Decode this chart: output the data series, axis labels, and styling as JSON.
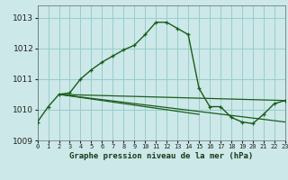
{
  "title": "Graphe pression niveau de la mer (hPa)",
  "bg_color": "#cce8e8",
  "grid_color": "#99cccc",
  "line_color": "#1a5c1a",
  "x_labels": [
    "0",
    "1",
    "2",
    "3",
    "4",
    "5",
    "6",
    "7",
    "8",
    "9",
    "10",
    "11",
    "12",
    "13",
    "14",
    "15",
    "16",
    "17",
    "18",
    "19",
    "20",
    "21",
    "22",
    "23"
  ],
  "xlim": [
    0,
    23
  ],
  "ylim": [
    1009,
    1013.4
  ],
  "yticks": [
    1009,
    1010,
    1011,
    1012,
    1013
  ],
  "main_series": [
    [
      0,
      1009.6
    ],
    [
      1,
      1010.1
    ],
    [
      2,
      1010.5
    ],
    [
      3,
      1010.55
    ],
    [
      4,
      1011.0
    ],
    [
      5,
      1011.3
    ],
    [
      6,
      1011.55
    ],
    [
      7,
      1011.75
    ],
    [
      8,
      1011.95
    ],
    [
      9,
      1012.1
    ],
    [
      10,
      1012.45
    ],
    [
      11,
      1012.85
    ],
    [
      12,
      1012.85
    ],
    [
      13,
      1012.65
    ],
    [
      14,
      1012.45
    ],
    [
      15,
      1010.7
    ],
    [
      16,
      1010.1
    ],
    [
      17,
      1010.1
    ],
    [
      18,
      1009.75
    ],
    [
      19,
      1009.6
    ],
    [
      20,
      1009.55
    ],
    [
      21,
      1009.85
    ],
    [
      22,
      1010.2
    ],
    [
      23,
      1010.3
    ]
  ],
  "tri_line1": [
    [
      2,
      1010.5
    ],
    [
      23,
      1010.3
    ]
  ],
  "tri_line2": [
    [
      2,
      1010.5
    ],
    [
      23,
      1009.6
    ]
  ],
  "tri_line3": [
    [
      2,
      1010.5
    ],
    [
      15,
      1009.85
    ]
  ]
}
